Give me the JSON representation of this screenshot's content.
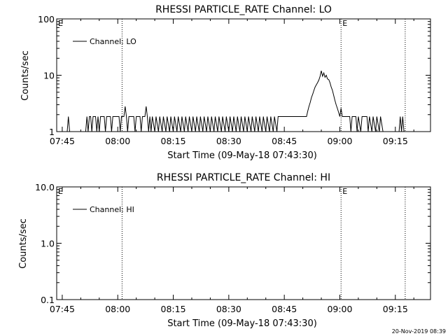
{
  "footer": {
    "timestamp": "20-Nov-2019 08:39"
  },
  "chart_data": [
    {
      "type": "line",
      "title": "RHESSI PARTICLE_RATE Channel: LO",
      "xlabel": "Start Time (09-May-18 07:43:30)",
      "ylabel": "Counts/sec",
      "yscale": "log",
      "ylim": [
        1,
        100
      ],
      "xlim": [
        "07:43:30",
        "09:24:30"
      ],
      "x_tick_labels": [
        "07:45",
        "08:00",
        "08:15",
        "08:30",
        "08:45",
        "09:00",
        "09:15"
      ],
      "y_tick_labels": [
        "1",
        "10",
        "100"
      ],
      "legend": {
        "position": "top-left",
        "entries": [
          "Channel: LO"
        ]
      },
      "event_markers": [
        {
          "time": "08:01:10",
          "label": ""
        },
        {
          "time": "09:00:20",
          "label": "E"
        },
        {
          "time": "09:17:40",
          "label": ""
        }
      ],
      "corner_label": "E",
      "series": [
        {
          "name": "Channel: LO",
          "points": [
            [
              "07:44:00",
              1
            ],
            [
              "07:45:00",
              1
            ],
            [
              "07:46:20",
              1
            ],
            [
              "07:46:40",
              1.85
            ],
            [
              "07:47:00",
              1
            ],
            [
              "07:49:00",
              1
            ],
            [
              "07:51:20",
              1
            ],
            [
              "07:51:40",
              1.85
            ],
            [
              "07:52:00",
              1
            ],
            [
              "07:52:20",
              1.85
            ],
            [
              "07:52:40",
              1.85
            ],
            [
              "07:53:00",
              1
            ],
            [
              "07:53:20",
              1.85
            ],
            [
              "07:54:00",
              1.85
            ],
            [
              "07:54:20",
              1
            ],
            [
              "07:54:40",
              1.85
            ],
            [
              "07:55:00",
              1
            ],
            [
              "07:55:20",
              1.85
            ],
            [
              "07:56:20",
              1.85
            ],
            [
              "07:56:40",
              1
            ],
            [
              "07:57:00",
              1.85
            ],
            [
              "07:58:00",
              1.85
            ],
            [
              "07:58:20",
              1
            ],
            [
              "07:58:40",
              1.85
            ],
            [
              "08:00:20",
              1.85
            ],
            [
              "08:00:40",
              1
            ],
            [
              "08:01:00",
              1.85
            ],
            [
              "08:01:40",
              1.85
            ],
            [
              "08:02:00",
              2.8
            ],
            [
              "08:02:20",
              1.85
            ],
            [
              "08:02:40",
              1
            ],
            [
              "08:03:00",
              1.85
            ],
            [
              "08:04:20",
              1.85
            ],
            [
              "08:04:40",
              1
            ],
            [
              "08:05:00",
              1.85
            ],
            [
              "08:06:00",
              1.85
            ],
            [
              "08:06:20",
              1
            ],
            [
              "08:06:40",
              1.85
            ],
            [
              "08:07:20",
              1.85
            ],
            [
              "08:07:40",
              2.8
            ],
            [
              "08:08:00",
              1.85
            ],
            [
              "08:08:20",
              1
            ],
            [
              "08:08:40",
              1.85
            ],
            [
              "08:09:00",
              1
            ],
            [
              "08:09:20",
              1.85
            ],
            [
              "08:10:00",
              1
            ],
            [
              "08:10:20",
              1.85
            ],
            [
              "08:11:00",
              1
            ],
            [
              "08:11:20",
              1.85
            ],
            [
              "08:12:00",
              1
            ],
            [
              "08:12:20",
              1.85
            ],
            [
              "08:13:00",
              1
            ],
            [
              "08:13:20",
              1.85
            ],
            [
              "08:14:00",
              1
            ],
            [
              "08:14:20",
              1.85
            ],
            [
              "08:15:00",
              1
            ],
            [
              "08:15:20",
              1.85
            ],
            [
              "08:16:00",
              1
            ],
            [
              "08:16:20",
              1.85
            ],
            [
              "08:17:00",
              1
            ],
            [
              "08:17:20",
              1.85
            ],
            [
              "08:18:00",
              1
            ],
            [
              "08:18:20",
              1.85
            ],
            [
              "08:19:00",
              1
            ],
            [
              "08:19:20",
              1.85
            ],
            [
              "08:20:00",
              1
            ],
            [
              "08:20:20",
              1.85
            ],
            [
              "08:21:00",
              1
            ],
            [
              "08:21:20",
              1.85
            ],
            [
              "08:22:00",
              1
            ],
            [
              "08:22:20",
              1.85
            ],
            [
              "08:23:00",
              1
            ],
            [
              "08:23:20",
              1.85
            ],
            [
              "08:24:00",
              1
            ],
            [
              "08:24:20",
              1.85
            ],
            [
              "08:25:00",
              1
            ],
            [
              "08:25:20",
              1.85
            ],
            [
              "08:26:00",
              1
            ],
            [
              "08:26:20",
              1.85
            ],
            [
              "08:27:00",
              1
            ],
            [
              "08:27:20",
              1.85
            ],
            [
              "08:28:00",
              1
            ],
            [
              "08:28:20",
              1.85
            ],
            [
              "08:29:00",
              1
            ],
            [
              "08:29:20",
              1.85
            ],
            [
              "08:30:00",
              1
            ],
            [
              "08:30:20",
              1.85
            ],
            [
              "08:31:00",
              1
            ],
            [
              "08:31:20",
              1.85
            ],
            [
              "08:32:00",
              1
            ],
            [
              "08:32:20",
              1.85
            ],
            [
              "08:33:00",
              1
            ],
            [
              "08:33:20",
              1.85
            ],
            [
              "08:34:00",
              1
            ],
            [
              "08:34:20",
              1.85
            ],
            [
              "08:35:00",
              1
            ],
            [
              "08:35:20",
              1.85
            ],
            [
              "08:36:00",
              1
            ],
            [
              "08:36:20",
              1.85
            ],
            [
              "08:37:00",
              1
            ],
            [
              "08:37:20",
              1.85
            ],
            [
              "08:38:00",
              1
            ],
            [
              "08:38:20",
              1.85
            ],
            [
              "08:39:00",
              1
            ],
            [
              "08:39:20",
              1.85
            ],
            [
              "08:40:00",
              1
            ],
            [
              "08:40:20",
              1.85
            ],
            [
              "08:41:00",
              1
            ],
            [
              "08:41:20",
              1.85
            ],
            [
              "08:42:00",
              1
            ],
            [
              "08:42:20",
              1.85
            ],
            [
              "08:43:00",
              1
            ],
            [
              "08:43:20",
              1.85
            ],
            [
              "08:51:00",
              1.85
            ],
            [
              "08:51:20",
              2.3
            ],
            [
              "08:51:40",
              2.8
            ],
            [
              "08:52:00",
              3.3
            ],
            [
              "08:52:20",
              4
            ],
            [
              "08:52:40",
              4.6
            ],
            [
              "08:53:00",
              5.4
            ],
            [
              "08:53:20",
              6.2
            ],
            [
              "08:53:40",
              6.8
            ],
            [
              "08:54:00",
              7.4
            ],
            [
              "08:54:20",
              8.2
            ],
            [
              "08:54:40",
              9.6
            ],
            [
              "08:55:00",
              12
            ],
            [
              "08:55:20",
              9.6
            ],
            [
              "08:55:40",
              11
            ],
            [
              "08:56:00",
              9.2
            ],
            [
              "08:56:20",
              10
            ],
            [
              "08:56:40",
              8.6
            ],
            [
              "08:57:00",
              8.4
            ],
            [
              "08:57:20",
              7.4
            ],
            [
              "08:57:40",
              6.2
            ],
            [
              "08:58:00",
              5.4
            ],
            [
              "08:58:20",
              4.4
            ],
            [
              "08:58:40",
              3.6
            ],
            [
              "08:59:00",
              3
            ],
            [
              "08:59:20",
              2.6
            ],
            [
              "08:59:40",
              2.2
            ],
            [
              "09:00:00",
              1.85
            ],
            [
              "09:00:20",
              2.6
            ],
            [
              "09:00:40",
              1.85
            ],
            [
              "09:02:40",
              1.85
            ],
            [
              "09:03:00",
              1
            ],
            [
              "09:03:20",
              1.85
            ],
            [
              "09:04:20",
              1.85
            ],
            [
              "09:04:40",
              1
            ],
            [
              "09:05:00",
              1.85
            ],
            [
              "09:05:40",
              1
            ],
            [
              "09:06:00",
              1.85
            ],
            [
              "09:07:20",
              1.85
            ],
            [
              "09:07:40",
              1
            ],
            [
              "09:08:00",
              1.85
            ],
            [
              "09:08:40",
              1
            ],
            [
              "09:09:00",
              1.85
            ],
            [
              "09:09:40",
              1
            ],
            [
              "09:10:00",
              1.85
            ],
            [
              "09:10:40",
              1
            ],
            [
              "09:11:00",
              1.85
            ],
            [
              "09:11:40",
              1
            ],
            [
              "09:16:00",
              1
            ],
            [
              "09:16:20",
              1.85
            ],
            [
              "09:16:40",
              1
            ],
            [
              "09:17:00",
              1.85
            ],
            [
              "09:17:20",
              1
            ]
          ]
        }
      ]
    },
    {
      "type": "line",
      "title": "RHESSI PARTICLE_RATE Channel: HI",
      "xlabel": "Start Time (09-May-18 07:43:30)",
      "ylabel": "Counts/sec",
      "yscale": "log",
      "ylim": [
        0.1,
        10
      ],
      "xlim": [
        "07:43:30",
        "09:24:30"
      ],
      "x_tick_labels": [
        "07:45",
        "08:00",
        "08:15",
        "08:30",
        "08:45",
        "09:00",
        "09:15"
      ],
      "y_tick_labels": [
        "0.1",
        "1.0",
        "10.0"
      ],
      "legend": {
        "position": "top-left",
        "entries": [
          "Channel: HI"
        ]
      },
      "event_markers": [
        {
          "time": "08:01:10",
          "label": ""
        },
        {
          "time": "09:00:20",
          "label": "E"
        },
        {
          "time": "09:17:40",
          "label": ""
        }
      ],
      "corner_label": "E",
      "series": [
        {
          "name": "Channel: HI",
          "points": []
        }
      ]
    }
  ]
}
